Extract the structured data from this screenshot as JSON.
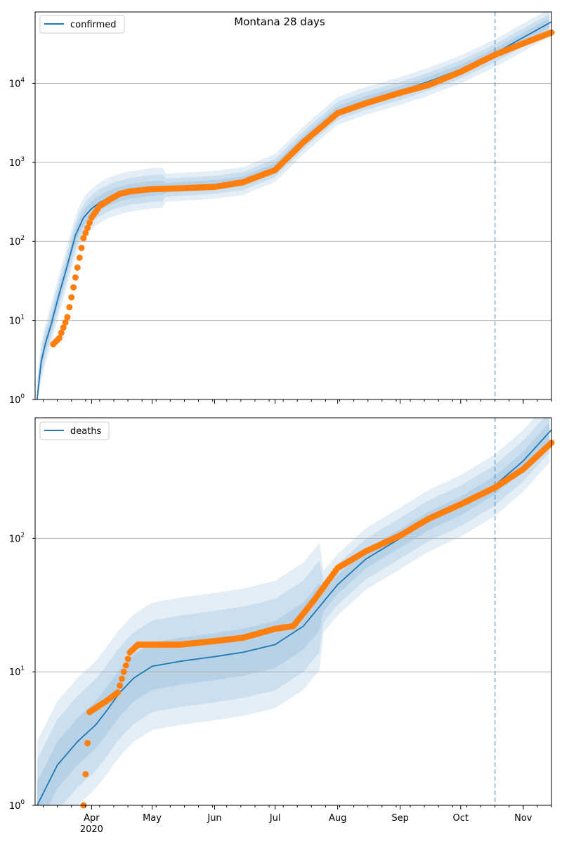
{
  "figure": {
    "title": "Montana 28 days"
  },
  "colors": {
    "model_line": "#1f77b4",
    "band_fill": "#1f77b4",
    "observed": "#ff7f0e",
    "grid": "#b0b0b0",
    "forecast_marker": "#1f77b4"
  },
  "chart_data": [
    {
      "type": "line",
      "panel": "top",
      "legend": {
        "label": "confirmed",
        "position": "top-left"
      },
      "yscale": "log",
      "ylim": [
        1,
        80000
      ],
      "yticks": [
        {
          "value": 1,
          "base": "10",
          "exp": "0"
        },
        {
          "value": 10,
          "base": "10",
          "exp": "1"
        },
        {
          "value": 100,
          "base": "10",
          "exp": "2"
        },
        {
          "value": 1000,
          "base": "10",
          "exp": "3"
        },
        {
          "value": 10000,
          "base": "10",
          "exp": "4"
        }
      ],
      "grid": "y",
      "xlim": [
        "2020-03-04",
        "2020-11-15"
      ],
      "forecast_start": "2020-10-18",
      "model": {
        "name": "confirmed",
        "x": [
          "2020-03-05",
          "2020-03-07",
          "2020-03-09",
          "2020-03-12",
          "2020-03-16",
          "2020-03-20",
          "2020-03-24",
          "2020-03-28",
          "2020-04-01",
          "2020-04-05",
          "2020-04-10",
          "2020-04-15",
          "2020-04-20",
          "2020-05-01",
          "2020-05-15",
          "2020-06-01",
          "2020-06-15",
          "2020-07-01",
          "2020-07-15",
          "2020-08-01",
          "2020-08-15",
          "2020-09-01",
          "2020-09-15",
          "2020-10-01",
          "2020-10-18",
          "2020-11-01",
          "2020-11-15"
        ],
        "y": [
          1,
          3,
          5,
          9,
          22,
          50,
          120,
          200,
          260,
          310,
          360,
          400,
          430,
          470,
          490,
          520,
          580,
          850,
          1900,
          4500,
          6000,
          8000,
          10500,
          15000,
          24000,
          38000,
          60000
        ]
      },
      "observed": {
        "x": [
          "2020-03-13",
          "2020-03-16",
          "2020-03-20",
          "2020-03-24",
          "2020-03-28",
          "2020-04-01",
          "2020-04-05",
          "2020-04-10",
          "2020-04-15",
          "2020-04-20",
          "2020-05-01",
          "2020-05-15",
          "2020-06-01",
          "2020-06-15",
          "2020-07-01",
          "2020-07-15",
          "2020-08-01",
          "2020-08-15",
          "2020-09-01",
          "2020-09-15",
          "2020-10-01",
          "2020-10-18",
          "2020-11-01",
          "2020-11-15"
        ],
        "y": [
          5,
          6,
          11,
          35,
          110,
          200,
          280,
          340,
          400,
          430,
          460,
          470,
          490,
          560,
          800,
          1800,
          4200,
          5600,
          7600,
          9500,
          14000,
          23000,
          32000,
          44000
        ]
      }
    },
    {
      "type": "line",
      "panel": "bottom",
      "legend": {
        "label": "deaths",
        "position": "top-left"
      },
      "yscale": "log",
      "ylim": [
        1,
        800
      ],
      "yticks": [
        {
          "value": 1,
          "base": "10",
          "exp": "0"
        },
        {
          "value": 10,
          "base": "10",
          "exp": "1"
        },
        {
          "value": 100,
          "base": "10",
          "exp": "2"
        }
      ],
      "grid": "y",
      "xlim": [
        "2020-03-04",
        "2020-11-15"
      ],
      "forecast_start": "2020-10-18",
      "xticks": [
        {
          "date": "2020-04-01",
          "label": "Apr",
          "sublabel": "2020"
        },
        {
          "date": "2020-05-01",
          "label": "May"
        },
        {
          "date": "2020-06-01",
          "label": "Jun"
        },
        {
          "date": "2020-07-01",
          "label": "Jul"
        },
        {
          "date": "2020-08-01",
          "label": "Aug"
        },
        {
          "date": "2020-09-01",
          "label": "Sep"
        },
        {
          "date": "2020-10-01",
          "label": "Oct"
        },
        {
          "date": "2020-11-01",
          "label": "Nov"
        }
      ],
      "model": {
        "name": "deaths",
        "x": [
          "2020-03-05",
          "2020-03-15",
          "2020-03-25",
          "2020-04-03",
          "2020-04-08",
          "2020-04-15",
          "2020-04-22",
          "2020-05-01",
          "2020-05-15",
          "2020-06-01",
          "2020-06-15",
          "2020-07-01",
          "2020-07-15",
          "2020-08-01",
          "2020-08-15",
          "2020-09-01",
          "2020-09-15",
          "2020-10-01",
          "2020-10-18",
          "2020-11-01",
          "2020-11-15"
        ],
        "y": [
          1,
          2,
          3,
          4,
          5,
          7,
          9,
          11,
          12,
          13,
          14,
          16,
          22,
          45,
          70,
          100,
          135,
          175,
          250,
          380,
          650
        ]
      },
      "observed": {
        "x": [
          "2020-03-28",
          "2020-03-31",
          "2020-04-08",
          "2020-04-14",
          "2020-04-17",
          "2020-04-20",
          "2020-04-24",
          "2020-05-01",
          "2020-05-15",
          "2020-06-01",
          "2020-06-15",
          "2020-07-01",
          "2020-07-10",
          "2020-07-20",
          "2020-08-01",
          "2020-08-15",
          "2020-09-01",
          "2020-09-15",
          "2020-10-01",
          "2020-10-18",
          "2020-11-01",
          "2020-11-15"
        ],
        "y": [
          1,
          5,
          6,
          7,
          10,
          14,
          16,
          16,
          16,
          17,
          18,
          21,
          22,
          34,
          60,
          80,
          105,
          140,
          180,
          240,
          330,
          520
        ]
      }
    }
  ]
}
